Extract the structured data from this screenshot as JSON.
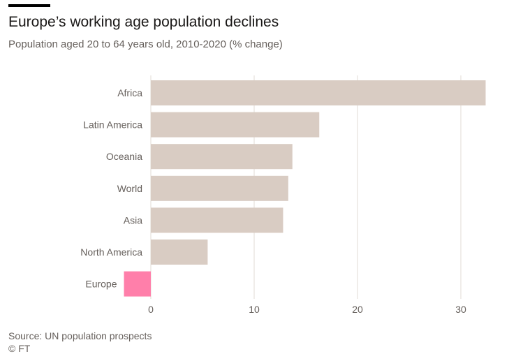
{
  "title": "Europe’s working age population declines",
  "subtitle": "Population aged 20 to 64 years old, 2010-2020 (% change)",
  "source": "Source: UN population prospects",
  "credit": "© FT",
  "colors": {
    "bar": "#d9ccc3",
    "highlight": "#ff7faa",
    "grid": "#e6e1dd",
    "text": "#66605c"
  },
  "chart_data": {
    "type": "bar",
    "orientation": "horizontal",
    "title": "Europe’s working age population declines",
    "subtitle": "Population aged 20 to 64 years old, 2010-2020 (% change)",
    "categories": [
      "Africa",
      "Latin America",
      "Oceania",
      "World",
      "Asia",
      "North America",
      "Europe"
    ],
    "values": [
      32.4,
      16.3,
      13.7,
      13.3,
      12.8,
      5.5,
      -2.6
    ],
    "highlight": "Europe",
    "xlim": [
      -2.6,
      33
    ],
    "xticks": [
      0,
      10,
      20,
      30
    ],
    "xtick_labels": [
      "0",
      "10",
      "20",
      "30"
    ],
    "grid": true,
    "xlabel": "",
    "ylabel": ""
  }
}
